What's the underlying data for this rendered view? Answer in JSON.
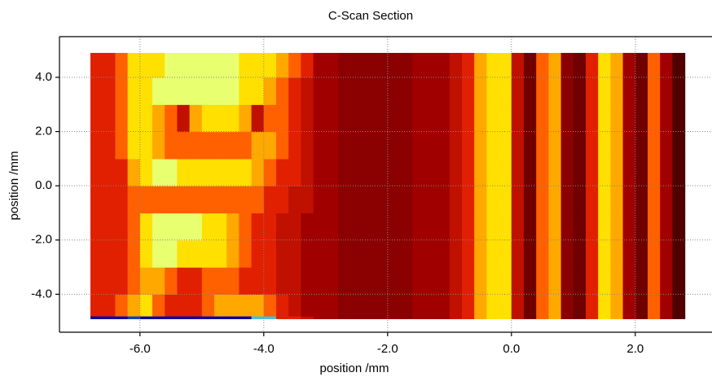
{
  "chart_data": {
    "type": "heatmap",
    "title": "C-Scan Section",
    "xlabel": "position /mm",
    "ylabel": "position /mm",
    "xlim": [
      -7.3,
      3.2
    ],
    "ylim": [
      -5.4,
      5.5
    ],
    "xticks": [
      {
        "value": -6,
        "label": "-6.0"
      },
      {
        "value": -4,
        "label": "-4.0"
      },
      {
        "value": -2,
        "label": "-2.0"
      },
      {
        "value": 0,
        "label": "0.0"
      },
      {
        "value": 2,
        "label": "2.0"
      }
    ],
    "yticks": [
      {
        "value": -4,
        "label": "-4.0"
      },
      {
        "value": -2,
        "label": "-2.0"
      },
      {
        "value": 0,
        "label": "0.0"
      },
      {
        "value": 2,
        "label": "2.0"
      },
      {
        "value": 4,
        "label": "4.0"
      }
    ],
    "grid": true,
    "vlim": [
      -3,
      9
    ],
    "colormap": [
      "#0000a0",
      "#0040c0",
      "#40c0e0",
      "#500000",
      "#700000",
      "#8b0000",
      "#a00000",
      "#c01000",
      "#e02000",
      "#ff6000",
      "#ffa800",
      "#ffe000",
      "#e8ff70"
    ],
    "x_edges": [
      -6.8,
      -6.6,
      -6.4,
      -6.2,
      -6,
      -5.8,
      -5.6,
      -5.4,
      -5.2,
      -5,
      -4.8,
      -4.6,
      -4.4,
      -4.2,
      -4,
      -3.8,
      -3.6,
      -3.4,
      -3.2,
      -3,
      -2.8,
      -2.6,
      -2.4,
      -2.2,
      -2,
      -1.8,
      -1.6,
      -1.4,
      -1.2,
      -1,
      -0.8,
      -0.6,
      -0.4,
      -0.2,
      0,
      0.2,
      0.4,
      0.6,
      0.8,
      1,
      1.2,
      1.4,
      1.6,
      1.8,
      2,
      2.2,
      2.4,
      2.6,
      2.8
    ],
    "y_edges": [
      -4.9,
      -4.8,
      -4,
      -3,
      -2,
      -1,
      0,
      1,
      2,
      3,
      4,
      4.9
    ],
    "z": [
      [
        -3,
        -3,
        -3,
        -2,
        -3,
        -3,
        -3,
        -3,
        -3,
        -3,
        -3,
        -3,
        -3,
        -1,
        -1,
        5,
        5,
        4,
        3,
        3,
        2,
        2,
        2,
        2,
        2,
        2,
        3,
        3,
        3,
        4,
        5,
        7,
        8,
        8,
        4,
        1,
        6,
        7,
        2,
        1,
        5,
        8,
        7,
        3,
        1,
        6,
        3,
        0
      ],
      [
        5,
        5,
        6,
        7,
        8,
        6,
        5,
        5,
        5,
        6,
        7,
        7,
        7,
        7,
        6,
        5,
        4,
        3,
        3,
        3,
        2,
        2,
        2,
        2,
        2,
        2,
        3,
        3,
        3,
        4,
        5,
        7,
        8,
        8,
        4,
        1,
        6,
        7,
        2,
        1,
        5,
        8,
        7,
        3,
        1,
        6,
        3,
        0
      ],
      [
        5,
        5,
        5,
        6,
        7,
        7,
        6,
        5,
        5,
        6,
        6,
        6,
        5,
        5,
        5,
        4,
        4,
        3,
        3,
        3,
        2,
        2,
        2,
        2,
        2,
        2,
        3,
        3,
        3,
        4,
        5,
        7,
        8,
        8,
        4,
        1,
        6,
        7,
        2,
        1,
        5,
        8,
        7,
        3,
        1,
        6,
        3,
        0
      ],
      [
        5,
        5,
        5,
        6,
        8,
        9,
        9,
        8,
        8,
        8,
        8,
        7,
        6,
        5,
        5,
        4,
        4,
        3,
        3,
        3,
        2,
        2,
        2,
        2,
        2,
        2,
        3,
        3,
        3,
        4,
        5,
        7,
        8,
        8,
        4,
        1,
        6,
        7,
        2,
        1,
        5,
        8,
        7,
        3,
        1,
        6,
        3,
        0
      ],
      [
        5,
        5,
        5,
        6,
        8,
        9,
        9,
        9,
        9,
        8,
        8,
        7,
        6,
        5,
        5,
        4,
        4,
        3,
        3,
        3,
        2,
        2,
        2,
        2,
        2,
        2,
        3,
        3,
        3,
        4,
        5,
        7,
        8,
        8,
        4,
        1,
        6,
        7,
        2,
        1,
        5,
        8,
        7,
        3,
        1,
        6,
        3,
        0
      ],
      [
        5,
        5,
        5,
        6,
        6,
        6,
        6,
        6,
        6,
        6,
        6,
        6,
        6,
        6,
        5,
        5,
        4,
        4,
        3,
        3,
        2,
        2,
        2,
        2,
        2,
        2,
        3,
        3,
        3,
        4,
        5,
        7,
        8,
        8,
        4,
        1,
        6,
        7,
        2,
        1,
        5,
        8,
        7,
        3,
        1,
        6,
        3,
        0
      ],
      [
        5,
        5,
        5,
        7,
        8,
        9,
        9,
        8,
        8,
        8,
        8,
        8,
        8,
        7,
        6,
        5,
        5,
        4,
        3,
        3,
        2,
        2,
        2,
        2,
        2,
        2,
        3,
        3,
        3,
        4,
        5,
        7,
        8,
        8,
        4,
        1,
        6,
        7,
        2,
        1,
        5,
        8,
        7,
        3,
        1,
        6,
        3,
        0
      ],
      [
        5,
        5,
        6,
        8,
        8,
        7,
        6,
        6,
        6,
        6,
        6,
        6,
        6,
        7,
        7,
        6,
        5,
        4,
        3,
        3,
        2,
        2,
        2,
        2,
        2,
        2,
        3,
        3,
        3,
        4,
        5,
        7,
        8,
        8,
        4,
        1,
        6,
        7,
        2,
        1,
        5,
        8,
        7,
        3,
        1,
        6,
        3,
        0
      ],
      [
        5,
        5,
        6,
        8,
        8,
        7,
        6,
        4,
        7,
        8,
        8,
        8,
        7,
        4,
        6,
        6,
        5,
        4,
        3,
        3,
        2,
        2,
        2,
        2,
        2,
        2,
        3,
        3,
        3,
        4,
        5,
        7,
        8,
        8,
        4,
        1,
        6,
        7,
        2,
        1,
        5,
        8,
        7,
        3,
        1,
        6,
        3,
        0
      ],
      [
        5,
        5,
        6,
        8,
        8,
        9,
        9,
        9,
        9,
        9,
        9,
        9,
        8,
        8,
        7,
        6,
        5,
        4,
        3,
        3,
        2,
        2,
        2,
        2,
        2,
        2,
        3,
        3,
        3,
        4,
        5,
        7,
        8,
        8,
        4,
        1,
        6,
        7,
        2,
        1,
        5,
        8,
        7,
        3,
        1,
        6,
        3,
        0
      ],
      [
        5,
        5,
        6,
        8,
        8,
        8,
        9,
        9,
        9,
        9,
        9,
        9,
        8,
        8,
        8,
        7,
        6,
        5,
        3,
        3,
        2,
        2,
        2,
        2,
        2,
        2,
        3,
        3,
        3,
        4,
        5,
        7,
        8,
        8,
        4,
        1,
        6,
        7,
        2,
        1,
        5,
        8,
        7,
        3,
        1,
        6,
        3,
        0
      ]
    ]
  }
}
